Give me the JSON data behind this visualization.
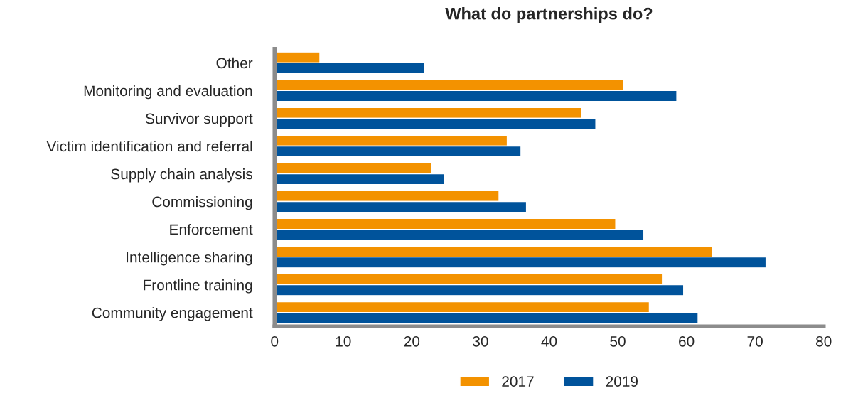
{
  "chart_data": {
    "type": "bar",
    "orientation": "horizontal",
    "title": "What do partnerships do?",
    "categories": [
      "Other",
      "Monitoring and evaluation",
      "Survivor support",
      "Victim identification and referral",
      "Supply chain analysis",
      "Commissioning",
      "Enforcement",
      "Intelligence sharing",
      "Frontline training",
      "Community engagement"
    ],
    "series": [
      {
        "name": "2017",
        "color": "#f39200",
        "values": [
          6.6,
          50.8,
          44.7,
          33.9,
          22.9,
          32.7,
          49.7,
          63.8,
          56.5,
          54.6
        ]
      },
      {
        "name": "2019",
        "color": "#00539b",
        "values": [
          21.8,
          58.6,
          46.8,
          35.9,
          24.7,
          36.7,
          53.8,
          71.6,
          59.6,
          61.7
        ]
      }
    ],
    "xlim": [
      0,
      80
    ],
    "xticks": [
      0,
      10,
      20,
      30,
      40,
      50,
      60,
      70,
      80
    ],
    "grid": false,
    "legend": "bottom"
  }
}
